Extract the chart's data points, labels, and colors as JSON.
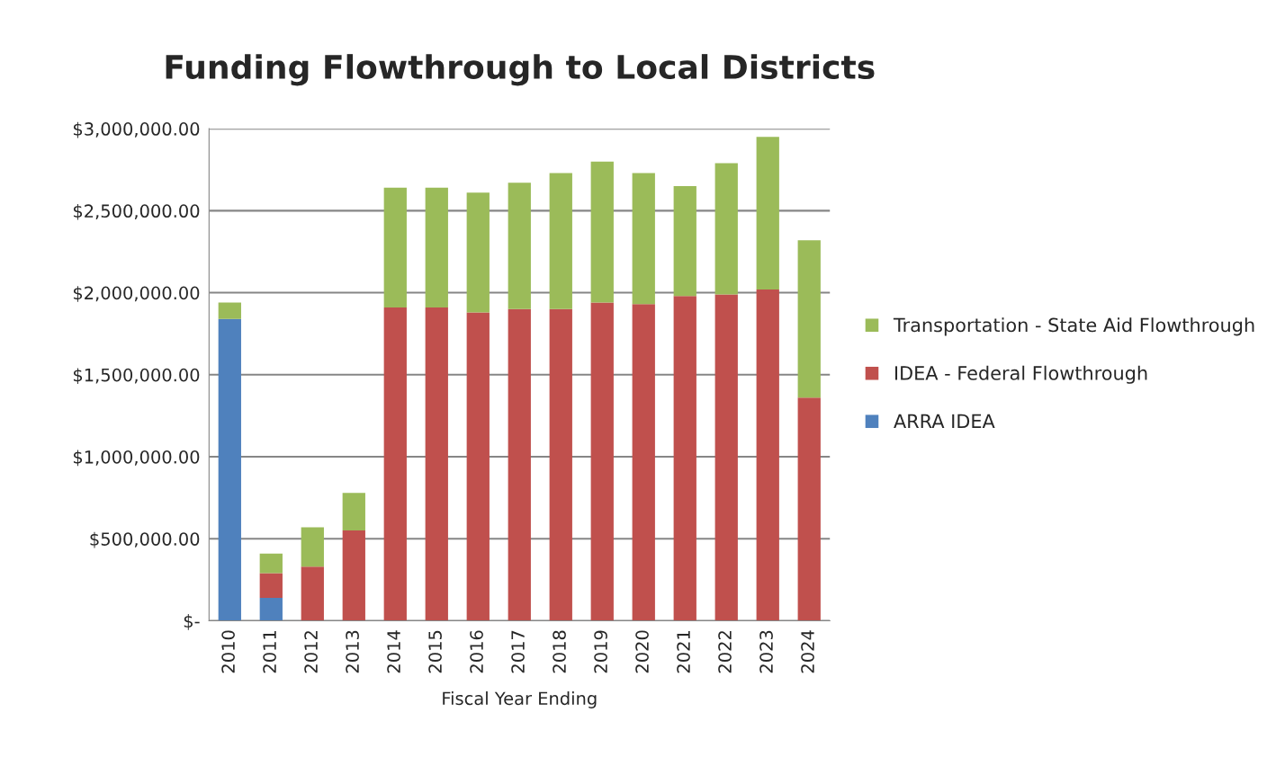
{
  "chart_data": {
    "type": "bar",
    "title": "Funding Flowthrough to Local Districts",
    "xlabel": "Fiscal Year Ending",
    "categories": [
      "2010",
      "2011",
      "2012",
      "2013",
      "2014",
      "2015",
      "2016",
      "2017",
      "2018",
      "2019",
      "2020",
      "2021",
      "2022",
      "2023",
      "2024"
    ],
    "stacked": true,
    "series": [
      {
        "name": "ARRA IDEA",
        "color": "#4f81bd",
        "values": [
          1840000,
          140000,
          0,
          0,
          0,
          0,
          0,
          0,
          0,
          0,
          0,
          0,
          0,
          0,
          0
        ]
      },
      {
        "name": "IDEA - Federal Flowthrough",
        "color": "#c0504d",
        "values": [
          0,
          150000,
          330000,
          550000,
          1910000,
          1910000,
          1880000,
          1900000,
          1900000,
          1940000,
          1930000,
          1980000,
          1990000,
          2020000,
          1360000
        ]
      },
      {
        "name": "Transportation - State Aid Flowthrough",
        "color": "#9bbb59",
        "values": [
          100000,
          120000,
          240000,
          230000,
          730000,
          730000,
          730000,
          770000,
          830000,
          860000,
          800000,
          670000,
          800000,
          930000,
          960000
        ]
      }
    ],
    "ylim": [
      0,
      3000000
    ],
    "yticks": [
      {
        "value": 0,
        "label": "$-"
      },
      {
        "value": 500000,
        "label": "$500,000.00"
      },
      {
        "value": 1000000,
        "label": "$1,000,000.00"
      },
      {
        "value": 1500000,
        "label": "$1,500,000.00"
      },
      {
        "value": 2000000,
        "label": "$2,000,000.00"
      },
      {
        "value": 2500000,
        "label": "$2,500,000.00"
      },
      {
        "value": 3000000,
        "label": "$3,000,000.00"
      }
    ],
    "grid": "y",
    "legend": "right"
  }
}
